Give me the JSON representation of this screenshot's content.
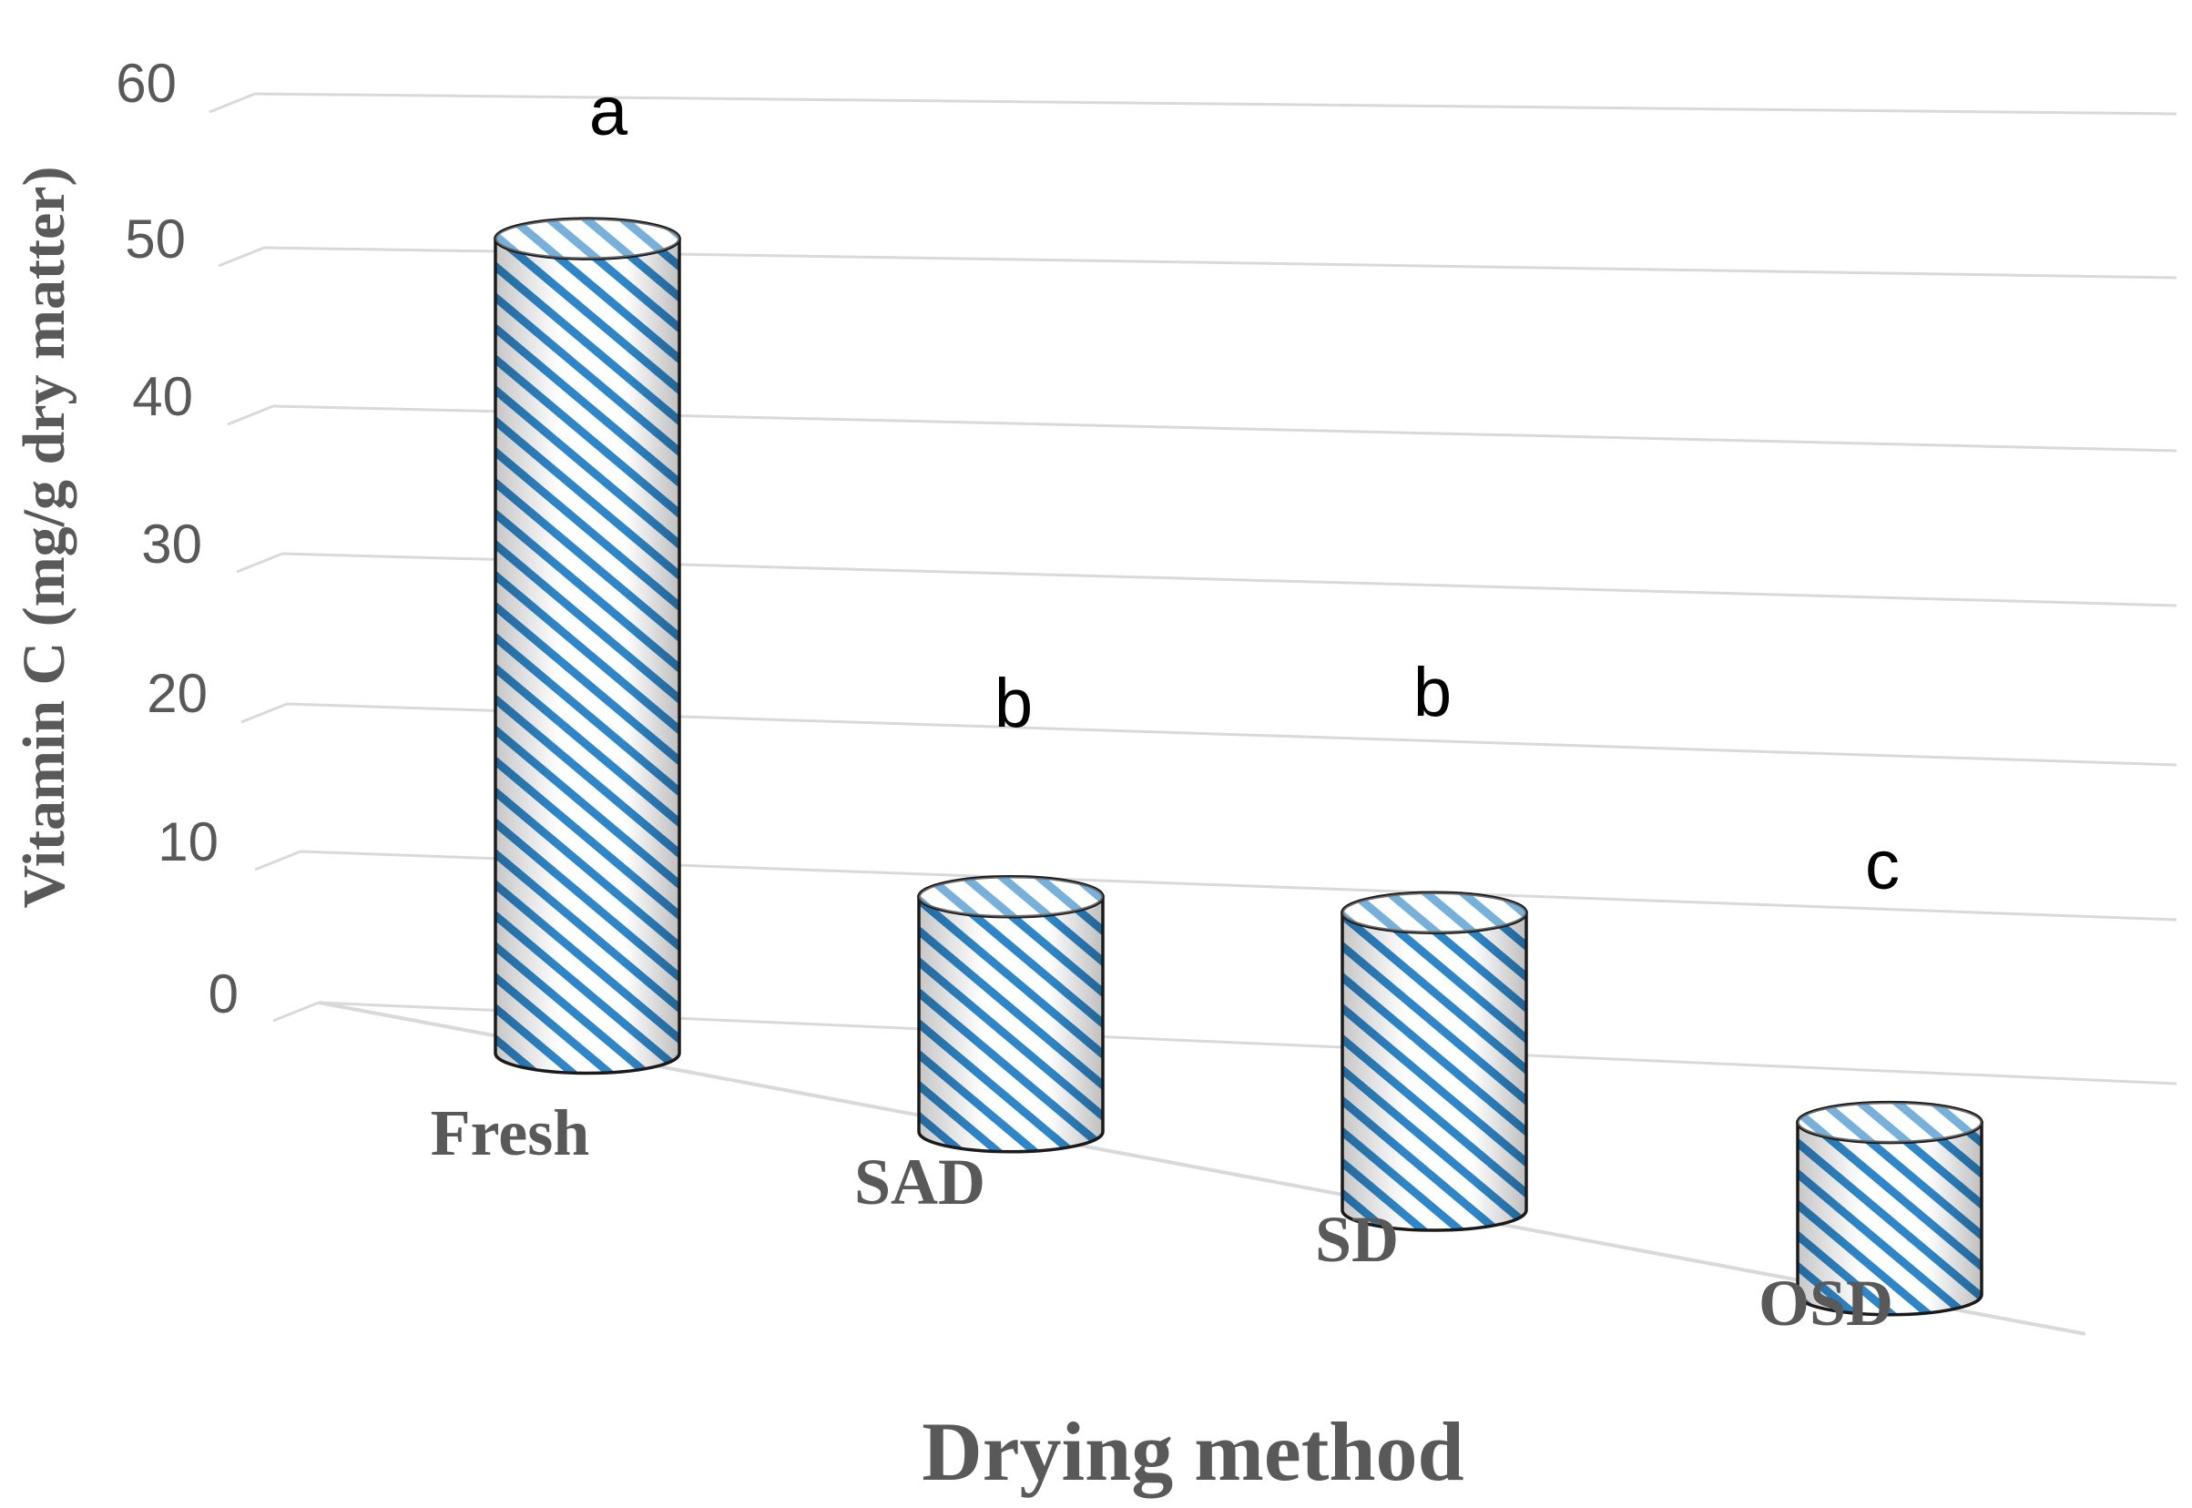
{
  "chart_data": {
    "type": "bar",
    "style": "3d-cylinder",
    "title": "",
    "xlabel": "Drying method",
    "ylabel": "Vitamin C (mg/g dry matter)",
    "categories": [
      "Fresh",
      "SAD",
      "SD",
      "OSD"
    ],
    "values": [
      52,
      15,
      19,
      11
    ],
    "significance_letters": [
      "a",
      "b",
      "b",
      "c"
    ],
    "ylim": [
      0,
      60
    ],
    "yticks": [
      "0",
      "10",
      "20",
      "30",
      "40",
      "50",
      "60"
    ],
    "grid": true,
    "legend": "none",
    "colors": {
      "stripe": "#2e86c8",
      "fill": "#ffffff",
      "outline": "#1a1a1a",
      "grid": "#d9d9d9",
      "text": "#595959"
    }
  }
}
